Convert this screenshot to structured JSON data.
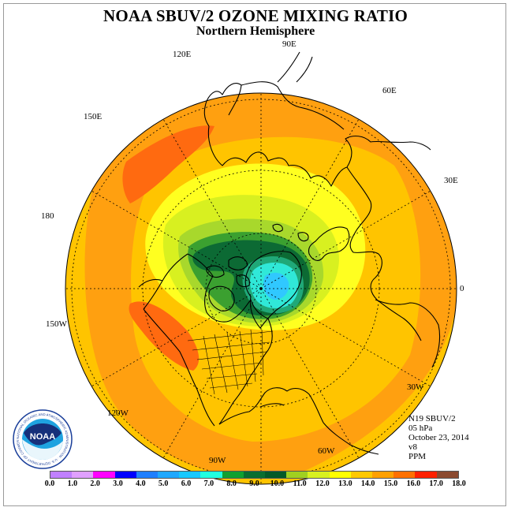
{
  "title": "NOAA SBUV/2 OZONE MIXING RATIO",
  "subtitle": "Northern Hemisphere",
  "longitude_labels": {
    "lon_90e": "90E",
    "lon_60e": "60E",
    "lon_30e": "30E",
    "lon_0": "0",
    "lon_30w": "30W",
    "lon_60w": "60W",
    "lon_90w": "90W",
    "lon_120w": "120W",
    "lon_150w": "150W",
    "lon_180": "180",
    "lon_150e": "150E",
    "lon_120e": "120E"
  },
  "info": {
    "instrument": "N19 SBUV/2",
    "level": "05 hPa",
    "date": "October 23, 2014",
    "version": "v8",
    "units": "PPM"
  },
  "logo_text": "NOAA",
  "logo_ring_text": "NATIONAL OCEANIC AND ATMOSPHERIC ADMINISTRATION · U.S. DEPARTMENT OF COMMERCE",
  "colorbar": {
    "ticks": [
      "0.0",
      "1.0",
      "2.0",
      "3.0",
      "4.0",
      "5.0",
      "6.0",
      "7.0",
      "8.0",
      "9.0",
      "10.0",
      "11.0",
      "12.0",
      "13.0",
      "14.0",
      "15.0",
      "16.0",
      "17.0",
      "18.0"
    ],
    "colors": [
      "#c080ff",
      "#e0a0ff",
      "#ff00ff",
      "#0000ff",
      "#1f7fff",
      "#20a8ff",
      "#18c8ff",
      "#20ffe0",
      "#10a030",
      "#0a6e30",
      "#045a28",
      "#a0d020",
      "#d8f020",
      "#ffff00",
      "#ffc800",
      "#ffa000",
      "#ff7000",
      "#ff2000",
      "#8b4a30"
    ]
  },
  "map_colors": {
    "level_14_15": "#ffc400",
    "level_15_16": "#ffa010",
    "level_16_17": "#ff6a10",
    "level_13_14": "#ffff20",
    "level_12_13": "#d8f020",
    "level_11_12": "#a8d82c",
    "level_10_11": "#3ba030",
    "level_9_10": "#0c6a34",
    "level_8_9": "#20a878",
    "level_7_8": "#30e8d8",
    "level_6_7": "#30c8ff"
  },
  "chart_data": {
    "type": "heatmap",
    "projection": "north polar stereographic",
    "variable": "ozone mixing ratio",
    "units": "PPM",
    "pressure_level": "05 hPa",
    "date": "October 23, 2014",
    "color_scale_range": [
      0.0,
      18.0
    ],
    "color_scale_step": 1.0,
    "field_regions": [
      {
        "region": "outer mid-latitudes",
        "value_range": [
          14,
          15
        ]
      },
      {
        "region": "maxima over north Pacific near 150E and 150W",
        "value_range": [
          16,
          17
        ]
      },
      {
        "region": "high latitudes ring",
        "value_range": [
          12,
          14
        ]
      },
      {
        "region": "polar vortex edge",
        "value_range": [
          9,
          11
        ]
      },
      {
        "region": "vortex core over Greenland",
        "value_range": [
          6,
          8
        ]
      }
    ]
  }
}
